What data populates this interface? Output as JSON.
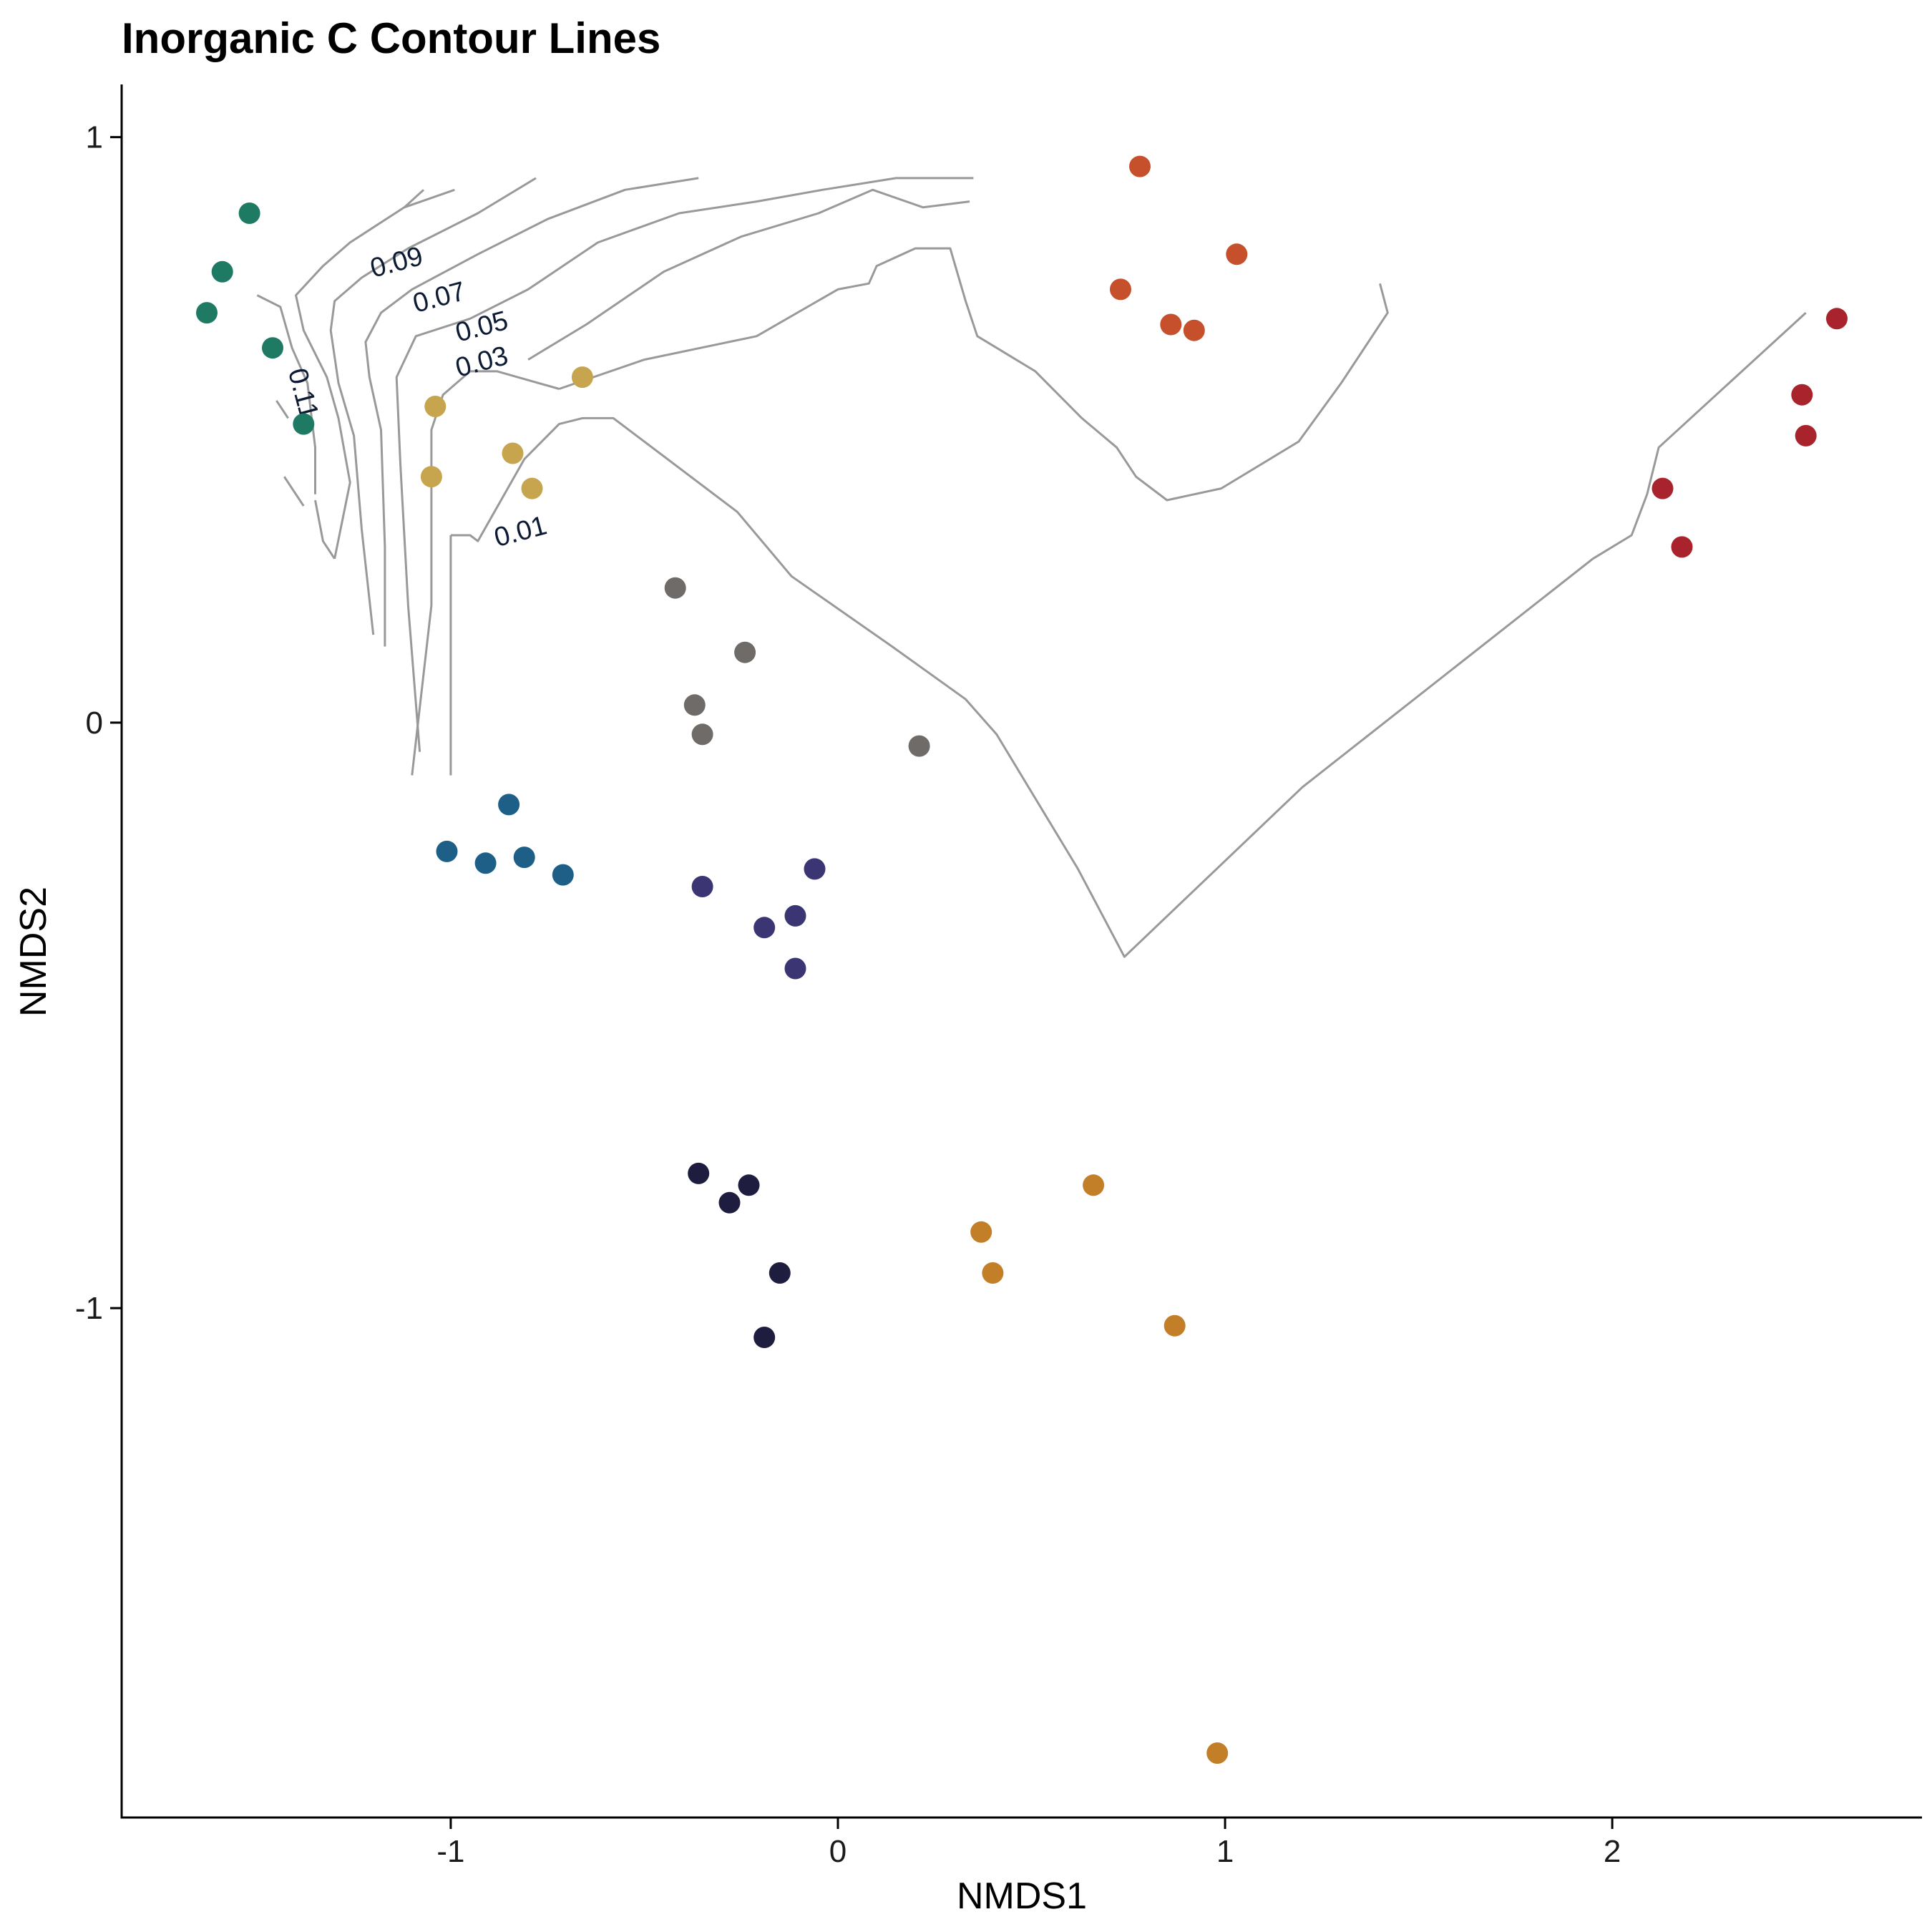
{
  "chart_data": {
    "type": "scatter",
    "title": "Inorganic C Contour Lines",
    "xlabel": "NMDS1",
    "ylabel": "NMDS2",
    "xlim": [
      -1.85,
      2.8
    ],
    "ylim": [
      -1.87,
      1.09
    ],
    "xticks": [
      -1,
      0,
      1,
      2
    ],
    "yticks": [
      -1,
      0,
      1
    ],
    "grid": false,
    "legend": "none",
    "series": [
      {
        "color": "#1f7a63",
        "points": [
          [
            -1.52,
            0.87
          ],
          [
            -1.59,
            0.77
          ],
          [
            -1.63,
            0.7
          ],
          [
            -1.46,
            0.64
          ],
          [
            -1.38,
            0.51
          ]
        ]
      },
      {
        "color": "#c7a44e",
        "points": [
          [
            -0.66,
            0.59
          ],
          [
            -1.04,
            0.54
          ],
          [
            -0.84,
            0.46
          ],
          [
            -1.05,
            0.42
          ],
          [
            -0.79,
            0.4
          ]
        ]
      },
      {
        "color": "#6e6b68",
        "points": [
          [
            -0.42,
            0.23
          ],
          [
            -0.24,
            0.12
          ],
          [
            -0.37,
            0.03
          ],
          [
            -0.35,
            -0.02
          ],
          [
            0.21,
            -0.04
          ]
        ]
      },
      {
        "color": "#1e5f88",
        "points": [
          [
            -0.85,
            -0.14
          ],
          [
            -1.01,
            -0.22
          ],
          [
            -0.91,
            -0.24
          ],
          [
            -0.81,
            -0.23
          ],
          [
            -0.71,
            -0.26
          ]
        ]
      },
      {
        "color": "#3b3673",
        "points": [
          [
            -0.06,
            -0.25
          ],
          [
            -0.35,
            -0.28
          ],
          [
            -0.11,
            -0.33
          ],
          [
            -0.19,
            -0.35
          ],
          [
            -0.11,
            -0.42
          ]
        ]
      },
      {
        "color": "#1e1d3f",
        "points": [
          [
            -0.36,
            -0.77
          ],
          [
            -0.23,
            -0.79
          ],
          [
            -0.28,
            -0.82
          ],
          [
            -0.15,
            -0.94
          ],
          [
            -0.19,
            -1.05
          ]
        ]
      },
      {
        "color": "#c27f28",
        "points": [
          [
            0.66,
            -0.79
          ],
          [
            0.37,
            -0.87
          ],
          [
            0.4,
            -0.94
          ],
          [
            0.87,
            -1.03
          ],
          [
            0.98,
            -1.76
          ]
        ]
      },
      {
        "color": "#c5502b",
        "points": [
          [
            0.78,
            0.95
          ],
          [
            1.03,
            0.8
          ],
          [
            0.73,
            0.74
          ],
          [
            0.86,
            0.68
          ],
          [
            0.92,
            0.67
          ]
        ]
      },
      {
        "color": "#a8232b",
        "points": [
          [
            2.58,
            0.69
          ],
          [
            2.49,
            0.56
          ],
          [
            2.5,
            0.49
          ],
          [
            2.13,
            0.4
          ],
          [
            2.18,
            0.3
          ]
        ]
      }
    ],
    "contours": [
      {
        "label": "0.01",
        "points": [
          [
            -1.0,
            0.32
          ],
          [
            -0.95,
            0.32
          ],
          [
            -0.93,
            0.31
          ],
          [
            -0.81,
            0.45
          ],
          [
            -0.72,
            0.51
          ],
          [
            -0.66,
            0.52
          ],
          [
            -0.58,
            0.52
          ],
          [
            -0.26,
            0.36
          ],
          [
            -0.12,
            0.25
          ],
          [
            0.14,
            0.13
          ],
          [
            0.33,
            0.04
          ],
          [
            0.41,
            -0.02
          ],
          [
            0.62,
            -0.25
          ],
          [
            0.74,
            -0.4
          ],
          [
            1.2,
            -0.11
          ],
          [
            1.95,
            0.28
          ],
          [
            2.05,
            0.32
          ],
          [
            2.09,
            0.39
          ],
          [
            2.12,
            0.47
          ],
          [
            2.5,
            0.7
          ]
        ]
      },
      {
        "label": "0.01",
        "points": [
          [
            -1.0,
            -0.09
          ],
          [
            -1.0,
            0.32
          ]
        ]
      },
      {
        "label": "0.01",
        "points": [
          [
            -0.72,
            0.57
          ],
          [
            -0.5,
            0.62
          ],
          [
            -0.21,
            0.66
          ],
          [
            0.0,
            0.74
          ],
          [
            0.08,
            0.75
          ],
          [
            0.1,
            0.78
          ],
          [
            0.2,
            0.81
          ],
          [
            0.29,
            0.81
          ],
          [
            0.33,
            0.72
          ],
          [
            0.36,
            0.66
          ],
          [
            0.51,
            0.6
          ],
          [
            0.63,
            0.52
          ],
          [
            0.72,
            0.47
          ],
          [
            0.77,
            0.42
          ],
          [
            0.85,
            0.38
          ],
          [
            0.99,
            0.4
          ],
          [
            1.19,
            0.48
          ],
          [
            1.3,
            0.58
          ],
          [
            1.42,
            0.7
          ],
          [
            1.4,
            0.75
          ]
        ]
      },
      {
        "label": "0.03",
        "points": [
          [
            -1.1,
            -0.09
          ],
          [
            -1.05,
            0.2
          ],
          [
            -1.05,
            0.5
          ],
          [
            -1.02,
            0.56
          ],
          [
            -0.95,
            0.6
          ],
          [
            -0.88,
            0.6
          ],
          [
            -0.72,
            0.57
          ]
        ]
      },
      {
        "label": "0.03",
        "points": [
          [
            -0.8,
            0.62
          ],
          [
            -0.65,
            0.68
          ],
          [
            -0.45,
            0.77
          ],
          [
            -0.25,
            0.83
          ],
          [
            -0.05,
            0.87
          ],
          [
            0.09,
            0.91
          ],
          [
            0.22,
            0.88
          ],
          [
            0.34,
            0.89
          ]
        ]
      },
      {
        "label": "0.05",
        "points": [
          [
            -1.08,
            -0.05
          ],
          [
            -1.11,
            0.2
          ],
          [
            -1.13,
            0.44
          ],
          [
            -1.14,
            0.59
          ],
          [
            -1.09,
            0.66
          ],
          [
            -0.95,
            0.69
          ],
          [
            -0.8,
            0.74
          ],
          [
            -0.62,
            0.82
          ],
          [
            -0.41,
            0.87
          ],
          [
            -0.21,
            0.89
          ],
          [
            -0.04,
            0.91
          ],
          [
            0.15,
            0.93
          ],
          [
            0.35,
            0.93
          ]
        ]
      },
      {
        "label": "0.07",
        "points": [
          [
            -1.17,
            0.13
          ],
          [
            -1.17,
            0.3
          ],
          [
            -1.18,
            0.5
          ],
          [
            -1.21,
            0.59
          ],
          [
            -1.22,
            0.65
          ],
          [
            -1.18,
            0.7
          ],
          [
            -1.1,
            0.74
          ],
          [
            -0.93,
            0.8
          ],
          [
            -0.75,
            0.86
          ],
          [
            -0.55,
            0.91
          ],
          [
            -0.36,
            0.93
          ]
        ]
      },
      {
        "label": "0.09",
        "points": [
          [
            -1.2,
            0.15
          ],
          [
            -1.23,
            0.33
          ],
          [
            -1.25,
            0.49
          ],
          [
            -1.29,
            0.58
          ],
          [
            -1.31,
            0.67
          ],
          [
            -1.3,
            0.72
          ],
          [
            -1.23,
            0.76
          ],
          [
            -1.11,
            0.81
          ],
          [
            -0.93,
            0.87
          ],
          [
            -0.78,
            0.93
          ]
        ]
      },
      {
        "label": "0.11",
        "points": [
          [
            -1.3,
            0.28
          ],
          [
            -1.26,
            0.41
          ],
          [
            -1.29,
            0.52
          ],
          [
            -1.32,
            0.59
          ],
          [
            -1.38,
            0.67
          ],
          [
            -1.4,
            0.73
          ],
          [
            -1.33,
            0.78
          ],
          [
            -1.26,
            0.82
          ],
          [
            -1.12,
            0.88
          ],
          [
            -0.99,
            0.91
          ]
        ]
      },
      {
        "label": "0.11",
        "points": [
          [
            -1.38,
            0.37
          ],
          [
            -1.43,
            0.42
          ]
        ]
      },
      {
        "label": "0.11",
        "points": [
          [
            -1.5,
            0.73
          ],
          [
            -1.44,
            0.71
          ],
          [
            -1.41,
            0.64
          ],
          [
            -1.37,
            0.58
          ],
          [
            -1.35,
            0.47
          ],
          [
            -1.35,
            0.39
          ]
        ]
      },
      {
        "label": "0.11",
        "points": [
          [
            -1.45,
            0.55
          ],
          [
            -1.42,
            0.52
          ]
        ]
      },
      {
        "label": "0.11",
        "points": [
          [
            -1.35,
            0.38
          ],
          [
            -1.33,
            0.31
          ],
          [
            -1.3,
            0.28
          ]
        ]
      },
      {
        "label": "0.09",
        "points": [
          [
            -1.12,
            0.88
          ],
          [
            -1.07,
            0.91
          ]
        ]
      }
    ],
    "contour_labels": [
      {
        "text": "0.09",
        "x": -1.2,
        "y": 0.76
      },
      {
        "text": "0.07",
        "x": -1.09,
        "y": 0.7
      },
      {
        "text": "0.05",
        "x": -0.98,
        "y": 0.65
      },
      {
        "text": "0.03",
        "x": -0.98,
        "y": 0.59
      },
      {
        "text": "0.01",
        "x": -0.88,
        "y": 0.3
      },
      {
        "text": "0.11",
        "x": -1.42,
        "y": 0.6
      }
    ]
  }
}
